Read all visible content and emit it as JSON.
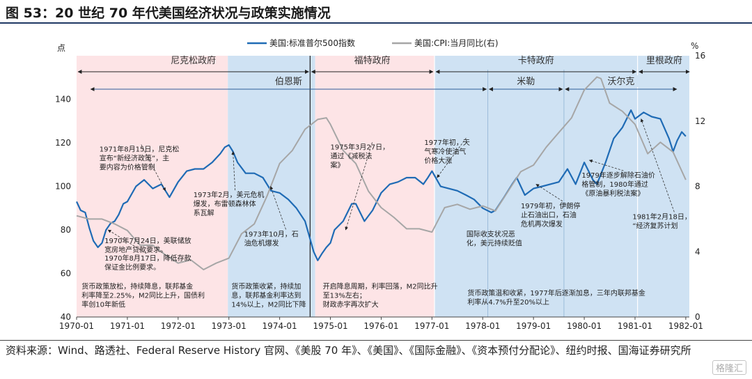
{
  "title": "图 53：20 世纪 70 年代美国经济状况与政策实施情况",
  "source": "资料来源：Wind、路透社、Federal Reserve History 官网、《美股 70 年》、《美国》、《国际金融》、《资本预付分配论》、纽约时报、国海证券研究所",
  "watermark": "格隆汇",
  "chart_data": {
    "type": "line",
    "title": "",
    "xlabel": "",
    "ylabel_left": "点",
    "ylabel_right": "%",
    "x_ticks": [
      "1970-01",
      "1971-01",
      "1972-01",
      "1973-01",
      "1974-01",
      "1975-01",
      "1976-01",
      "1977-01",
      "1978-01",
      "1979-01",
      "1980-01",
      "1981-01",
      "1982-01"
    ],
    "ylim_left": [
      40,
      160
    ],
    "yticks_left": [
      40,
      60,
      80,
      100,
      120,
      140
    ],
    "ylim_right": [
      0,
      16
    ],
    "yticks_right": [
      0,
      4,
      8,
      12,
      16
    ],
    "legend_position": "top",
    "grid": false,
    "series": [
      {
        "name": "美国:标准普尔500指数",
        "axis": "left",
        "color": "#1f6bb5",
        "x": [
          1970.0,
          1970.08,
          1970.17,
          1970.25,
          1970.33,
          1970.42,
          1970.5,
          1970.58,
          1970.67,
          1970.75,
          1970.83,
          1970.92,
          1971.0,
          1971.17,
          1971.33,
          1971.5,
          1971.67,
          1971.83,
          1972.0,
          1972.17,
          1972.33,
          1972.5,
          1972.67,
          1972.83,
          1972.92,
          1973.0,
          1973.08,
          1973.17,
          1973.33,
          1973.5,
          1973.67,
          1973.83,
          1974.0,
          1974.17,
          1974.33,
          1974.5,
          1974.67,
          1974.75,
          1974.83,
          1974.92,
          1975.0,
          1975.08,
          1975.25,
          1975.42,
          1975.5,
          1975.67,
          1975.83,
          1976.0,
          1976.17,
          1976.33,
          1976.5,
          1976.67,
          1976.83,
          1976.92,
          1977.0,
          1977.17,
          1977.33,
          1977.5,
          1977.67,
          1977.83,
          1978.0,
          1978.17,
          1978.25,
          1978.42,
          1978.58,
          1978.67,
          1978.83,
          1979.0,
          1979.17,
          1979.33,
          1979.5,
          1979.67,
          1979.83,
          1980.0,
          1980.17,
          1980.25,
          1980.42,
          1980.58,
          1980.75,
          1980.92,
          1981.0,
          1981.17,
          1981.33,
          1981.5,
          1981.67,
          1981.75,
          1981.83,
          1981.92,
          1982.0
        ],
        "values": [
          93,
          89,
          88,
          81,
          75,
          72,
          74,
          80,
          83,
          84,
          87,
          92,
          93,
          100,
          103,
          99,
          101,
          95,
          102,
          107,
          108,
          108,
          111,
          115,
          118,
          119,
          116,
          111,
          106,
          106,
          104,
          98,
          97,
          94,
          90,
          84,
          70,
          66,
          69,
          72,
          74,
          80,
          84,
          92,
          92,
          84,
          89,
          97,
          101,
          102,
          104,
          104,
          101,
          104,
          107,
          100,
          99,
          98,
          96,
          94,
          90,
          88,
          89,
          95,
          101,
          104,
          96,
          99,
          100,
          101,
          102,
          108,
          101,
          111,
          103,
          101,
          111,
          122,
          127,
          135,
          131,
          134,
          132,
          131,
          122,
          116,
          121,
          125,
          123
        ]
      },
      {
        "name": "美国:CPI:当月同比(右)",
        "axis": "right",
        "color": "#a6a6a6",
        "x": [
          1970.0,
          1970.25,
          1970.5,
          1970.75,
          1971.0,
          1971.25,
          1971.5,
          1971.75,
          1972.0,
          1972.25,
          1972.5,
          1972.75,
          1973.0,
          1973.25,
          1973.5,
          1973.75,
          1974.0,
          1974.25,
          1974.5,
          1974.75,
          1974.92,
          1975.0,
          1975.25,
          1975.5,
          1975.75,
          1976.0,
          1976.25,
          1976.5,
          1976.75,
          1977.0,
          1977.25,
          1977.5,
          1977.75,
          1978.0,
          1978.25,
          1978.5,
          1978.75,
          1979.0,
          1979.25,
          1979.5,
          1979.75,
          1980.0,
          1980.25,
          1980.33,
          1980.5,
          1980.75,
          1981.0,
          1981.25,
          1981.5,
          1981.75,
          1982.0
        ],
        "values": [
          6.2,
          6.0,
          6.0,
          5.7,
          5.3,
          4.4,
          4.4,
          3.8,
          3.3,
          3.5,
          2.9,
          3.3,
          3.6,
          5.1,
          5.7,
          7.4,
          9.4,
          10.2,
          11.5,
          12.1,
          12.2,
          11.8,
          10.2,
          9.4,
          7.7,
          6.7,
          6.1,
          5.4,
          5.4,
          5.2,
          6.7,
          6.9,
          6.6,
          6.8,
          6.5,
          7.7,
          8.9,
          9.3,
          10.4,
          11.3,
          12.2,
          13.9,
          14.7,
          14.6,
          13.1,
          12.6,
          11.8,
          10.0,
          10.7,
          10.1,
          8.4
        ]
      }
    ],
    "administrations": [
      {
        "label": "尼克松政府",
        "from": 1970.0,
        "to": 1974.6
      },
      {
        "label": "福特政府",
        "from": 1974.6,
        "to": 1977.05
      },
      {
        "label": "卡特政府",
        "from": 1977.05,
        "to": 1981.05
      },
      {
        "label": "里根政府",
        "from": 1981.05,
        "to": 1982.1
      }
    ],
    "fed_chairs": [
      {
        "label": "伯恩斯",
        "from": 1970.25,
        "to": 1978.1
      },
      {
        "label": "米勒",
        "from": 1978.1,
        "to": 1979.6
      },
      {
        "label": "沃尔克",
        "from": 1979.6,
        "to": 1981.85
      }
    ],
    "annotations": [
      {
        "lines": [
          "1971年8月15日，尼克松",
          "宣布“新经济政策”，主",
          "要内容为价格管制"
        ],
        "x": 1970.45,
        "y": 116,
        "arrow_to": [
          1971.75,
          98
        ]
      },
      {
        "lines": [
          "1973年2月，美元危机",
          "爆发，布雷顿森林体",
          "系瓦解"
        ],
        "x": 1972.3,
        "y": 95,
        "arrow_to": [
          1973.08,
          116
        ]
      },
      {
        "lines": [
          "1973年10月，石",
          "油危机爆发"
        ],
        "x": 1973.3,
        "y": 77,
        "arrow_to": [
          1973.82,
          100
        ]
      },
      {
        "lines": [
          "1970年7月24日，美联储放",
          "宽房地产贷款要求。"
        ],
        "x": 1970.55,
        "y": 74
      },
      {
        "lines": [
          "1970年8月17日，降低存款",
          "保证金比例要求。"
        ],
        "x": 1970.55,
        "y": 66,
        "arrow_to": [
          1970.62,
          80
        ]
      },
      {
        "lines": [
          "1975年3月27日，",
          "通过《减税法",
          "案》"
        ],
        "x": 1975.0,
        "y": 117,
        "arrow_to": [
          1975.3,
          80
        ]
      },
      {
        "lines": [
          "1977年初，天",
          "气寒冷使油气",
          "价格大涨"
        ],
        "x": 1976.85,
        "y": 119,
        "arrow_to": [
          1977.1,
          104
        ]
      },
      {
        "lines": [
          "国际收支状况恶",
          "化，美元持续贬值"
        ],
        "x": 1977.68,
        "y": 77
      },
      {
        "lines": [
          "1979年初，伊朗停",
          "止石油出口，石油",
          "危机再次爆发"
        ],
        "x": 1978.75,
        "y": 90,
        "arrow_to": [
          1979.05,
          101
        ]
      },
      {
        "lines": [
          "1979年逐步解除石油价",
          "格管制，1980年通过",
          "《原油暴利税法案》"
        ],
        "x": 1979.95,
        "y": 104,
        "arrow_to": [
          1980.1,
          112
        ]
      },
      {
        "lines": [
          "1981年2月18日，",
          "“经济复苏计划"
        ],
        "x": 1980.95,
        "y": 85,
        "arrow_to": [
          1981.12,
          131
        ]
      }
    ],
    "policy_notes": [
      {
        "lines": [
          "货币政策放松，持续降息，联邦基金",
          "利率降至2.25%，M2同比上升，国债利",
          "率创10年新低"
        ],
        "x": 1970.1,
        "y": 53
      },
      {
        "lines": [
          "货币政策收紧，持续加",
          "息，联邦基金利率达到",
          "14%以上，M2同比下降"
        ],
        "x": 1973.05,
        "y": 53
      },
      {
        "lines": [
          "开启降息周期，利率回落，M2同比升",
          "至13%左右；",
          "财政赤字再次扩大"
        ],
        "x": 1974.85,
        "y": 53
      },
      {
        "lines": [
          "货币政策温和收紧，1977年后逐渐加息，三年内联邦基金",
          "利率从4.7%升至20%以上"
        ],
        "x": 1977.7,
        "y": 50
      }
    ]
  }
}
